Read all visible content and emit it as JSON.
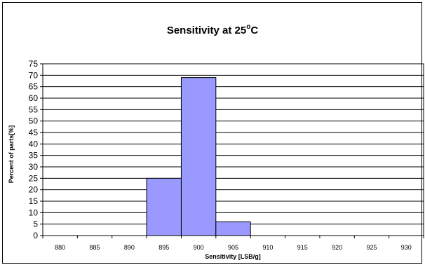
{
  "chart_data": {
    "type": "bar",
    "title": "Sensitivity at 25",
    "title_degree": "o",
    "title_unit": "C",
    "xlabel": "Sensitivity  [LSB/g]",
    "ylabel": "Percent of parts[%]",
    "x_ticks": [
      "880",
      "885",
      "890",
      "895",
      "900",
      "905",
      "910",
      "915",
      "920",
      "925",
      "930"
    ],
    "y_ticks": [
      "0",
      "5",
      "10",
      "15",
      "20",
      "25",
      "30",
      "35",
      "40",
      "45",
      "50",
      "55",
      "60",
      "65",
      "70",
      "75"
    ],
    "ylim": [
      0,
      75
    ],
    "xlim": [
      877.5,
      932.5
    ],
    "bin_width": 5,
    "bins": [
      {
        "center": 895,
        "value": 25
      },
      {
        "center": 900,
        "value": 69
      },
      {
        "center": 905,
        "value": 6
      }
    ],
    "grid": true,
    "bar_color": "#9999ff"
  }
}
